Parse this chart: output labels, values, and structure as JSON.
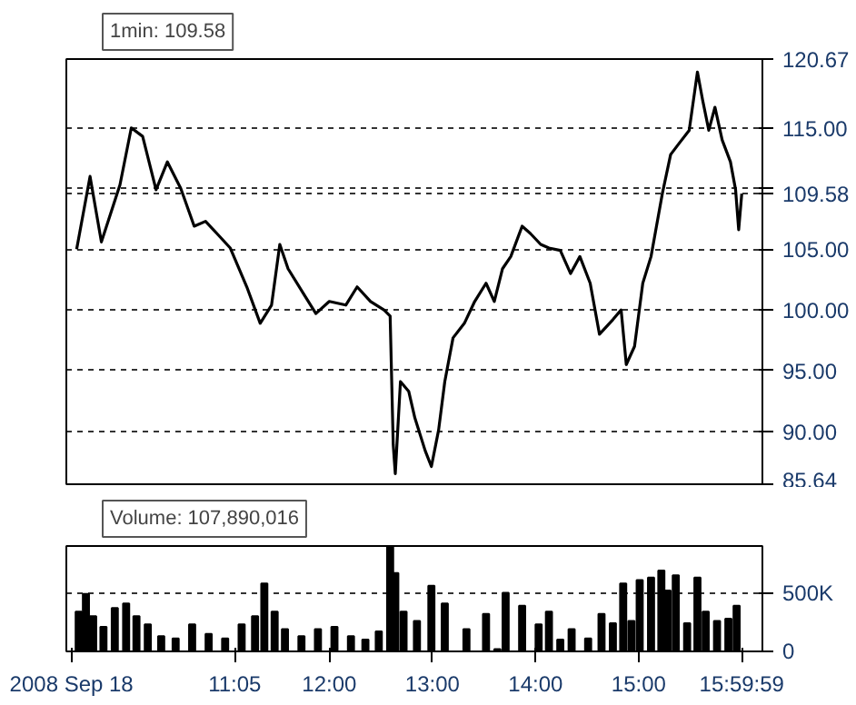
{
  "chart_data": [
    {
      "type": "line",
      "title": "1min: 109.58",
      "color": "#000000",
      "x": [
        9.55,
        9.68,
        9.79,
        9.97,
        10.08,
        10.19,
        10.32,
        10.43,
        10.56,
        10.69,
        10.8,
        10.91,
        11.04,
        11.2,
        11.33,
        11.44,
        11.52,
        11.6,
        11.76,
        11.87,
        12,
        12.16,
        12.27,
        12.4,
        12.53,
        12.59,
        12.62,
        12.64,
        12.69,
        12.77,
        12.83,
        12.93,
        12.99,
        13.06,
        13.12,
        13.2,
        13.31,
        13.41,
        13.52,
        13.6,
        13.68,
        13.76,
        13.87,
        13.95,
        14.05,
        14.13,
        14.24,
        14.34,
        14.43,
        14.53,
        14.62,
        14.75,
        14.83,
        14.88,
        14.96,
        15.04,
        15.12,
        15.23,
        15.31,
        15.39,
        15.49,
        15.57,
        15.62,
        15.68,
        15.74,
        15.81,
        15.89,
        15.94,
        15.97,
        16.0
      ],
      "values": [
        105,
        111,
        105.6,
        110.3,
        115,
        114.3,
        109.9,
        112.2,
        110,
        106.9,
        107.3,
        106.3,
        105.1,
        101.9,
        98.9,
        100.4,
        105.4,
        103.4,
        101.2,
        99.7,
        100.7,
        100.4,
        101.9,
        100.7,
        100,
        99.5,
        88.9,
        86.5,
        94.1,
        93.3,
        91.1,
        88.4,
        87.1,
        90.1,
        94.1,
        97.7,
        98.9,
        100.7,
        102.2,
        100.7,
        103.4,
        104.4,
        106.9,
        106.3,
        105.4,
        105.1,
        104.9,
        103,
        104.4,
        102.2,
        98,
        99.2,
        100,
        95.5,
        97,
        102.2,
        104.4,
        109.6,
        112.8,
        113.7,
        114.8,
        119.6,
        117.3,
        114.8,
        116.7,
        114,
        112.2,
        109.9,
        106.6,
        109.58
      ],
      "xlim": [
        9.45,
        16.2
      ],
      "ylim": [
        85.64,
        120.67
      ],
      "yticks": [
        85.64,
        {
          "value": 90,
          "label": "90.00"
        },
        {
          "value": 95,
          "label": "95.00"
        },
        {
          "value": 100,
          "label": "100.00"
        },
        {
          "value": 105,
          "label": "105.00"
        },
        {
          "value": 110,
          "label": null
        },
        109.58,
        {
          "value": 115,
          "label": "115.00"
        },
        120.67
      ],
      "grid": "y",
      "tick_labels": "y"
    },
    {
      "type": "bar",
      "title": "Volume: 107,890,016",
      "color": "#000000",
      "x": [
        9.57,
        9.64,
        9.71,
        9.81,
        9.92,
        10.03,
        10.13,
        10.24,
        10.37,
        10.51,
        10.67,
        10.83,
        10.99,
        11.15,
        11.28,
        11.37,
        11.47,
        11.57,
        11.73,
        11.89,
        12.05,
        12.21,
        12.35,
        12.48,
        12.59,
        12.64,
        12.72,
        12.85,
        12.99,
        13.12,
        13.33,
        13.52,
        13.63,
        13.71,
        13.87,
        14.03,
        14.13,
        14.24,
        14.35,
        14.51,
        14.64,
        14.75,
        14.85,
        14.93,
        15.01,
        15.12,
        15.22,
        15.28,
        15.36,
        15.47,
        15.57,
        15.65,
        15.76,
        15.87,
        15.95
      ],
      "values": [
        340000,
        490000,
        300000,
        210000,
        370000,
        410000,
        300000,
        230000,
        130000,
        110000,
        230000,
        150000,
        110000,
        230000,
        300000,
        580000,
        340000,
        190000,
        130000,
        190000,
        210000,
        130000,
        100000,
        170000,
        890000,
        670000,
        340000,
        260000,
        560000,
        410000,
        190000,
        320000,
        20000,
        500000,
        390000,
        230000,
        340000,
        100000,
        190000,
        110000,
        320000,
        240000,
        580000,
        260000,
        610000,
        630000,
        690000,
        520000,
        650000,
        240000,
        630000,
        340000,
        260000,
        280000,
        390000
      ],
      "xlim": [
        9.45,
        16.2
      ],
      "ylim": [
        0,
        900000
      ],
      "xticks": [
        {
          "value": 9.5,
          "label": "2008 Sep 18"
        },
        {
          "value": 11.0833,
          "label": "11:05"
        },
        {
          "value": 12,
          "label": "12:00"
        },
        {
          "value": 13,
          "label": "13:00"
        },
        {
          "value": 14,
          "label": "14:00"
        },
        {
          "value": 15,
          "label": "15:00"
        },
        {
          "value": 15.9997,
          "label": "15:59:59"
        }
      ],
      "yticks": [
        0,
        {
          "value": 500000,
          "label": "500K"
        }
      ],
      "grid": "y"
    }
  ]
}
